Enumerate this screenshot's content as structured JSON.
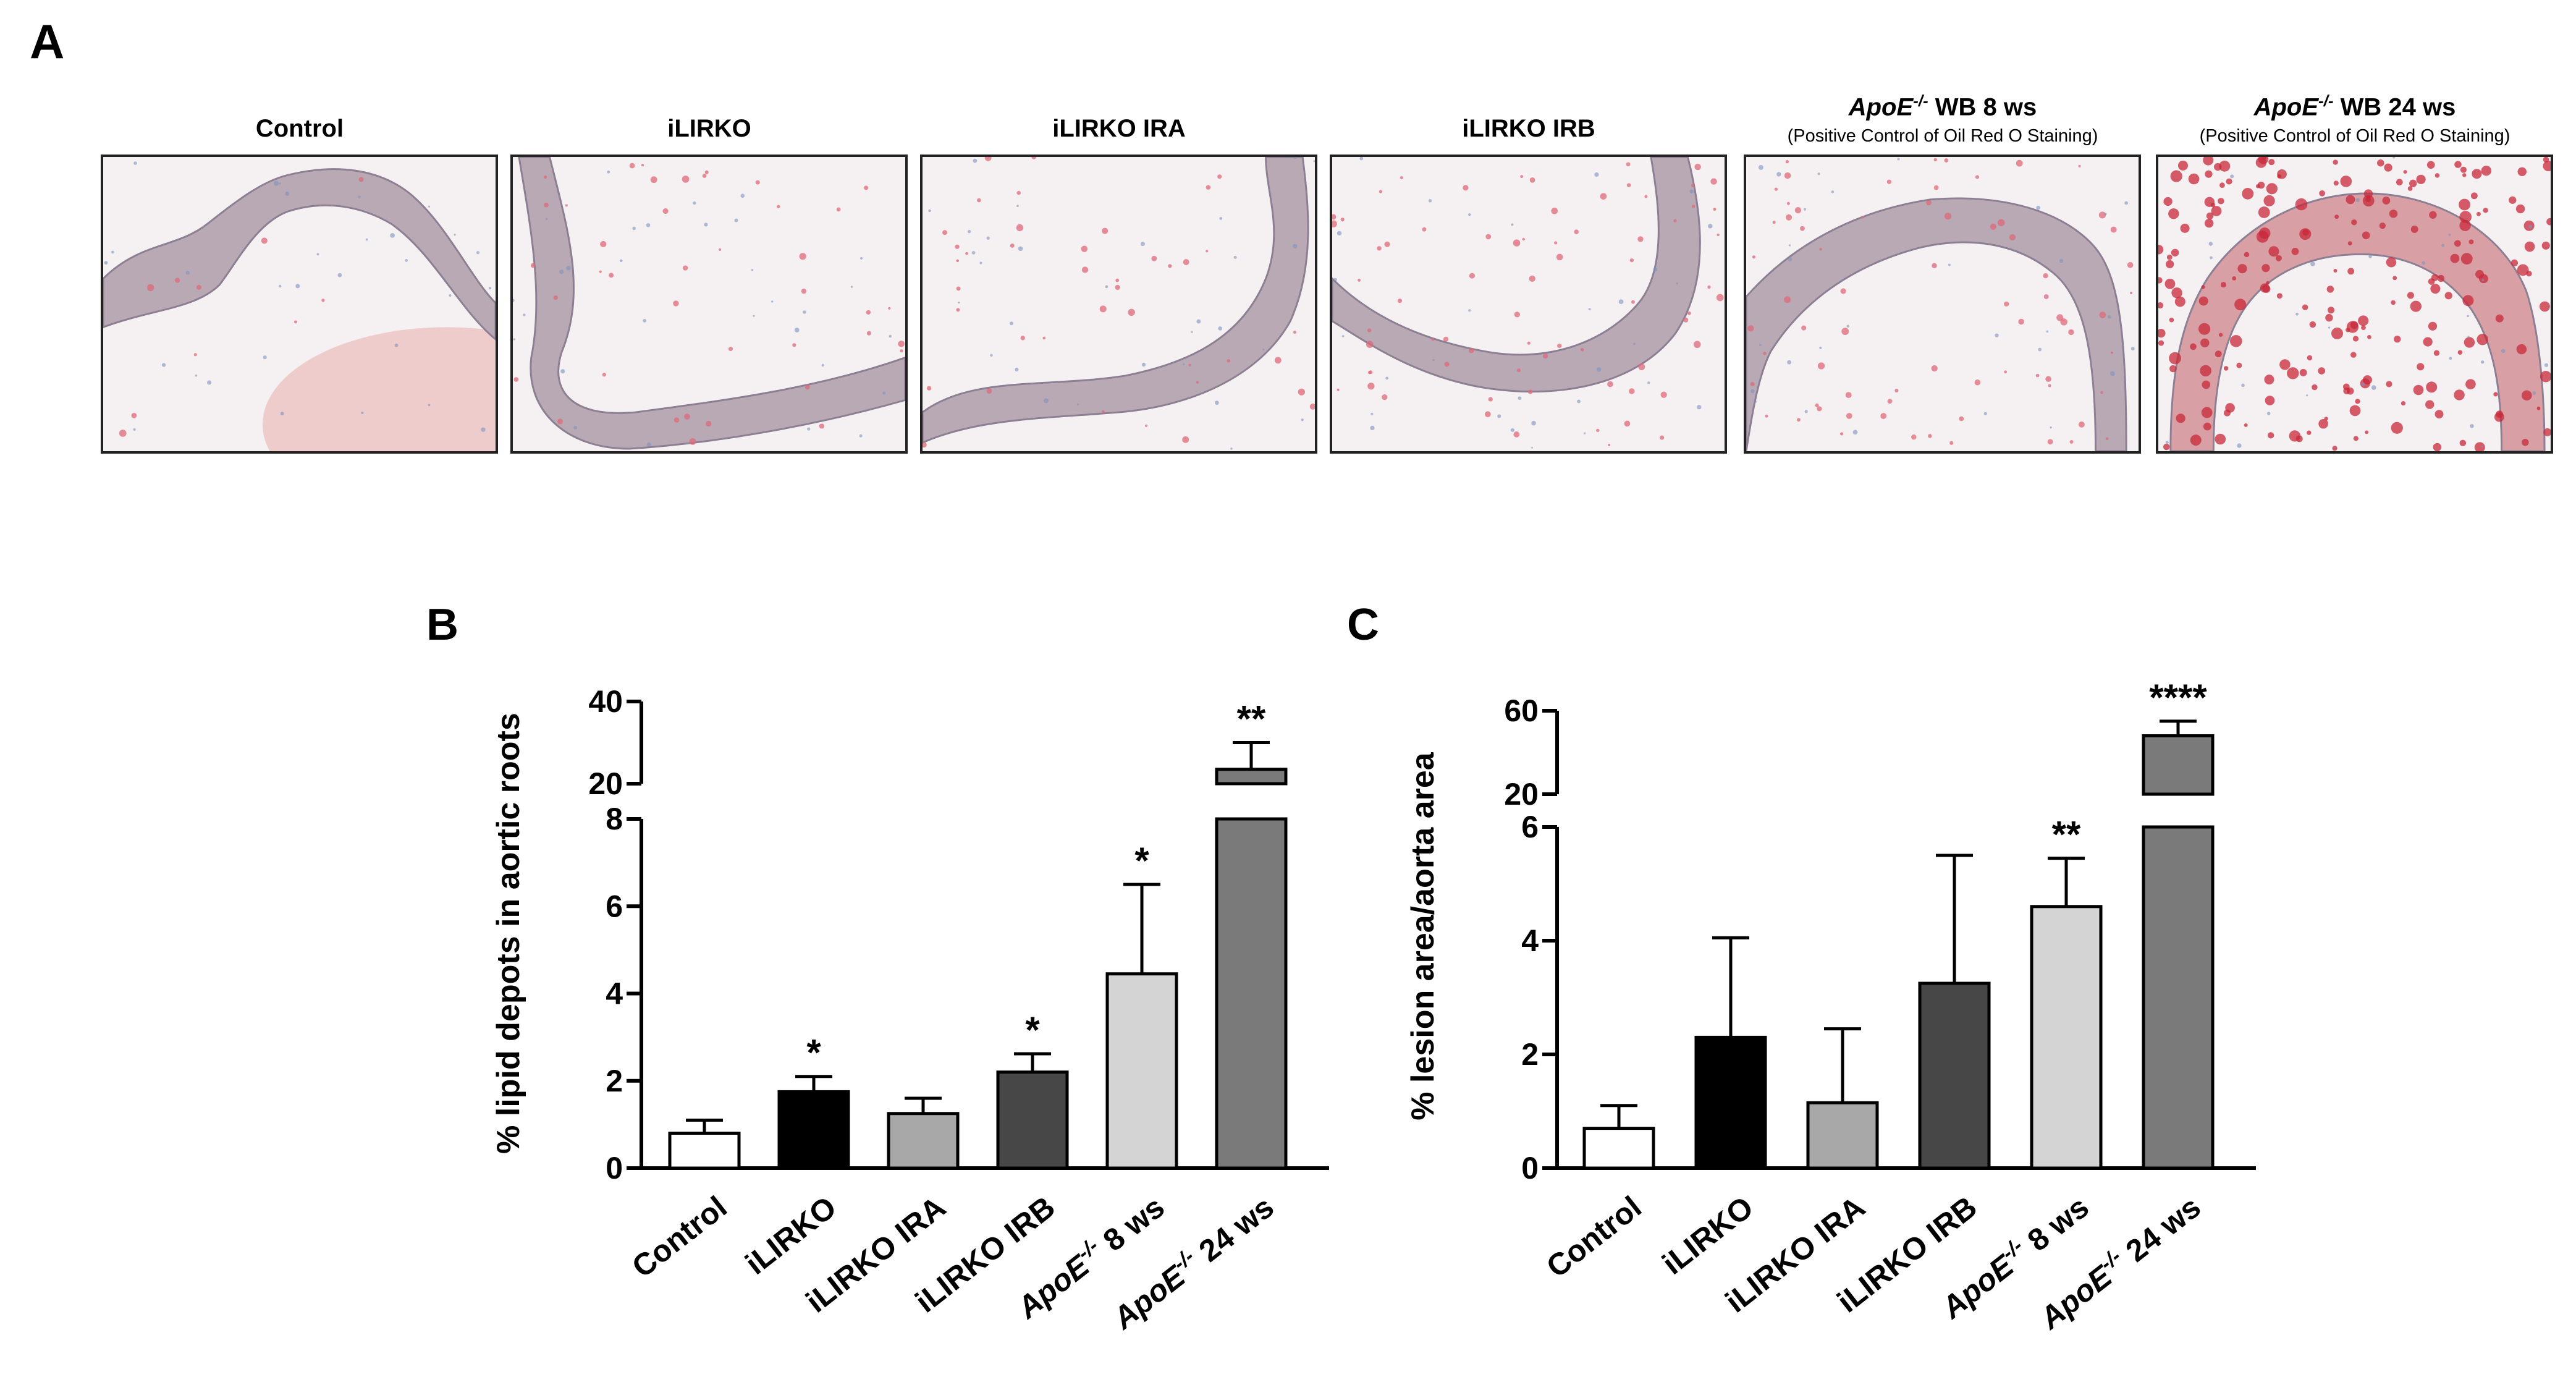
{
  "panel_a": {
    "letter": "A",
    "images": [
      {
        "title": "Control",
        "subtitle": "",
        "stain": "faint"
      },
      {
        "title": "iLIRKO",
        "subtitle": "",
        "stain": "light"
      },
      {
        "title": "iLIRKO IRA",
        "subtitle": "",
        "stain": "light"
      },
      {
        "title": "iLIRKO IRB",
        "subtitle": "",
        "stain": "medium"
      },
      {
        "title_prefix": "ApoE",
        "title_sup": "-/-",
        "title_suffix": " WB 8 ws",
        "subtitle": "(Positive Control of Oil Red O Staining)",
        "stain": "medium"
      },
      {
        "title_prefix": "ApoE",
        "title_sup": "-/-",
        "title_suffix": " WB 24 ws",
        "subtitle": "(Positive Control of Oil Red O Staining)",
        "stain": "heavy"
      }
    ]
  },
  "colors": {
    "bars": [
      "#ffffff",
      "#000000",
      "#a8a8a8",
      "#474747",
      "#d4d4d4",
      "#7a7a7a"
    ],
    "axis": "#000000"
  },
  "chart_data": [
    {
      "panel": "B",
      "type": "bar",
      "ylabel": "% lipid depots in aortic roots",
      "categories": [
        "Control",
        "iLIRKO",
        "iLIRKO IRA",
        "iLIRKO IRB",
        "ApoE-/- 8 ws",
        "ApoE-/- 24 ws"
      ],
      "category_labels": [
        {
          "text": "Control"
        },
        {
          "text": "iLIRKO"
        },
        {
          "text": "iLIRKO IRA"
        },
        {
          "text": "iLIRKO IRB"
        },
        {
          "prefix": "ApoE",
          "sup": "-/-",
          "suffix": " 8 ws"
        },
        {
          "prefix": "ApoE",
          "sup": "-/-",
          "suffix": " 24 ws"
        }
      ],
      "values": [
        0.8,
        1.75,
        1.25,
        2.2,
        4.45,
        23.5
      ],
      "errors": [
        0.3,
        0.35,
        0.35,
        0.42,
        2.05,
        6.5
      ],
      "significance": [
        "",
        "*",
        "",
        "*",
        "*",
        "**"
      ],
      "broken_axis": {
        "lower": {
          "range": [
            0,
            8
          ],
          "ticks": [
            0,
            2,
            4,
            6,
            8
          ],
          "tick_labels": [
            "0",
            "2",
            "4",
            "6",
            "8"
          ]
        },
        "upper": {
          "range": [
            20,
            40
          ],
          "ticks": [
            20,
            40
          ],
          "tick_labels": [
            "20",
            "40"
          ]
        }
      }
    },
    {
      "panel": "C",
      "type": "bar",
      "ylabel": "% lesion area/aorta area",
      "categories": [
        "Control",
        "iLIRKO",
        "iLIRKO IRA",
        "iLIRKO IRB",
        "ApoE-/- 8 ws",
        "ApoE-/- 24 ws"
      ],
      "category_labels": [
        {
          "text": "Control"
        },
        {
          "text": "iLIRKO"
        },
        {
          "text": "iLIRKO IRA"
        },
        {
          "text": "iLIRKO IRB"
        },
        {
          "prefix": "ApoE",
          "sup": "-/-",
          "suffix": " 8 ws"
        },
        {
          "prefix": "ApoE",
          "sup": "-/-",
          "suffix": " 24 ws"
        }
      ],
      "values": [
        0.7,
        2.3,
        1.15,
        3.25,
        4.6,
        48
      ],
      "errors": [
        0.4,
        1.75,
        1.3,
        2.25,
        0.85,
        7
      ],
      "significance": [
        "",
        "",
        "",
        "",
        "**",
        "****"
      ],
      "broken_axis": {
        "lower": {
          "range": [
            0,
            6
          ],
          "ticks": [
            0,
            2,
            4,
            6
          ],
          "tick_labels": [
            "0",
            "2",
            "4",
            "6"
          ]
        },
        "upper": {
          "range": [
            20,
            60
          ],
          "ticks": [
            20,
            60
          ],
          "tick_labels": [
            "20",
            "60"
          ]
        }
      }
    }
  ]
}
